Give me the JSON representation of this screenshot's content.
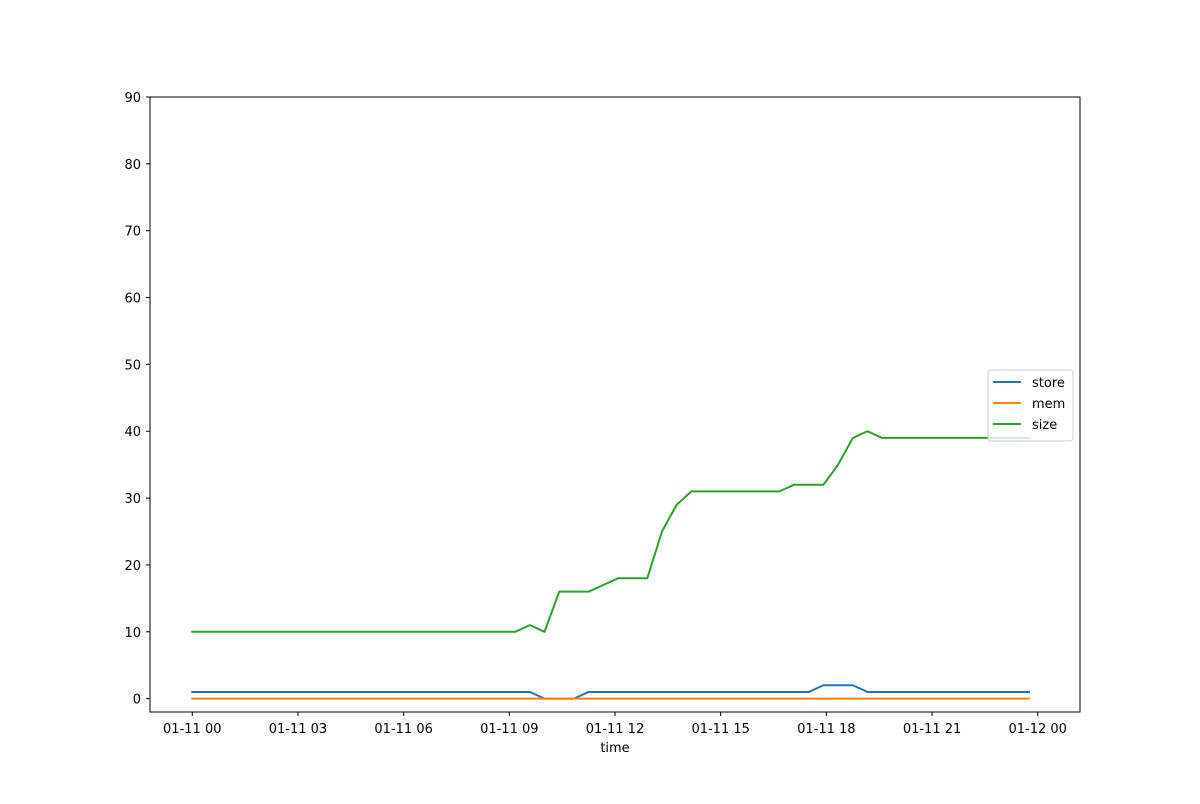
{
  "chart_data": {
    "type": "line",
    "title": "",
    "xlabel": "time",
    "ylabel": "",
    "x_axis": {
      "type": "datetime",
      "domain": [
        "2022-01-10T22:48:00",
        "2022-01-12T01:12:00"
      ],
      "ticks": [
        {
          "value": "2022-01-11T00:00:00",
          "label": "01-11 00"
        },
        {
          "value": "2022-01-11T03:00:00",
          "label": "01-11 03"
        },
        {
          "value": "2022-01-11T06:00:00",
          "label": "01-11 06"
        },
        {
          "value": "2022-01-11T09:00:00",
          "label": "01-11 09"
        },
        {
          "value": "2022-01-11T12:00:00",
          "label": "01-11 12"
        },
        {
          "value": "2022-01-11T15:00:00",
          "label": "01-11 15"
        },
        {
          "value": "2022-01-11T18:00:00",
          "label": "01-11 18"
        },
        {
          "value": "2022-01-11T21:00:00",
          "label": "01-11 21"
        },
        {
          "value": "2022-01-12T00:00:00",
          "label": "01-12 00"
        }
      ]
    },
    "y_axis": {
      "ylim": [
        -2,
        90
      ],
      "ticks": [
        0,
        10,
        20,
        30,
        40,
        50,
        60,
        70,
        80,
        90
      ]
    },
    "grid": false,
    "legend": {
      "position": "center-right"
    },
    "x": [
      "2022-01-11T00:00:00",
      "2022-01-11T00:25:00",
      "2022-01-11T00:50:00",
      "2022-01-11T01:15:00",
      "2022-01-11T01:40:00",
      "2022-01-11T02:05:00",
      "2022-01-11T02:30:00",
      "2022-01-11T02:55:00",
      "2022-01-11T03:20:00",
      "2022-01-11T03:45:00",
      "2022-01-11T04:10:00",
      "2022-01-11T04:35:00",
      "2022-01-11T05:00:00",
      "2022-01-11T05:25:00",
      "2022-01-11T05:50:00",
      "2022-01-11T06:15:00",
      "2022-01-11T06:40:00",
      "2022-01-11T07:05:00",
      "2022-01-11T07:30:00",
      "2022-01-11T07:55:00",
      "2022-01-11T08:20:00",
      "2022-01-11T08:45:00",
      "2022-01-11T09:10:00",
      "2022-01-11T09:35:00",
      "2022-01-11T10:00:00",
      "2022-01-11T10:25:00",
      "2022-01-11T10:50:00",
      "2022-01-11T11:15:00",
      "2022-01-11T11:40:00",
      "2022-01-11T12:05:00",
      "2022-01-11T12:30:00",
      "2022-01-11T12:55:00",
      "2022-01-11T13:20:00",
      "2022-01-11T13:45:00",
      "2022-01-11T14:10:00",
      "2022-01-11T14:35:00",
      "2022-01-11T15:00:00",
      "2022-01-11T15:25:00",
      "2022-01-11T15:50:00",
      "2022-01-11T16:15:00",
      "2022-01-11T16:40:00",
      "2022-01-11T17:05:00",
      "2022-01-11T17:30:00",
      "2022-01-11T17:55:00",
      "2022-01-11T18:20:00",
      "2022-01-11T18:45:00",
      "2022-01-11T19:10:00",
      "2022-01-11T19:35:00",
      "2022-01-11T20:00:00",
      "2022-01-11T20:25:00",
      "2022-01-11T20:50:00",
      "2022-01-11T21:15:00",
      "2022-01-11T21:40:00",
      "2022-01-11T22:05:00",
      "2022-01-11T22:30:00",
      "2022-01-11T22:55:00",
      "2022-01-11T23:20:00",
      "2022-01-11T23:45:00"
    ],
    "series": [
      {
        "name": "store",
        "color": "#1f77b4",
        "values": [
          1,
          1,
          1,
          1,
          1,
          1,
          1,
          1,
          1,
          1,
          1,
          1,
          1,
          1,
          1,
          1,
          1,
          1,
          1,
          1,
          1,
          1,
          1,
          1,
          0,
          0,
          0,
          1,
          1,
          1,
          1,
          1,
          1,
          1,
          1,
          1,
          1,
          1,
          1,
          1,
          1,
          1,
          1,
          2,
          2,
          2,
          1,
          1,
          1,
          1,
          1,
          1,
          1,
          1,
          1,
          1,
          1,
          1
        ]
      },
      {
        "name": "mem",
        "color": "#ff7f0e",
        "values": [
          0,
          0,
          0,
          0,
          0,
          0,
          0,
          0,
          0,
          0,
          0,
          0,
          0,
          0,
          0,
          0,
          0,
          0,
          0,
          0,
          0,
          0,
          0,
          0,
          0,
          0,
          0,
          0,
          0,
          0,
          0,
          0,
          0,
          0,
          0,
          0,
          0,
          0,
          0,
          0,
          0,
          0,
          0,
          0,
          0,
          0,
          0,
          0,
          0,
          0,
          0,
          0,
          0,
          0,
          0,
          0,
          0,
          0
        ]
      },
      {
        "name": "size",
        "color": "#2ca02c",
        "values": [
          10,
          10,
          10,
          10,
          10,
          10,
          10,
          10,
          10,
          10,
          10,
          10,
          10,
          10,
          10,
          10,
          10,
          10,
          10,
          10,
          10,
          10,
          10,
          11,
          10,
          16,
          16,
          16,
          17,
          18,
          18,
          18,
          25,
          29,
          31,
          31,
          31,
          31,
          31,
          31,
          31,
          32,
          32,
          32,
          35,
          39,
          40,
          39,
          39,
          39,
          39,
          39,
          39,
          39,
          39,
          39,
          39,
          39
        ]
      }
    ]
  }
}
